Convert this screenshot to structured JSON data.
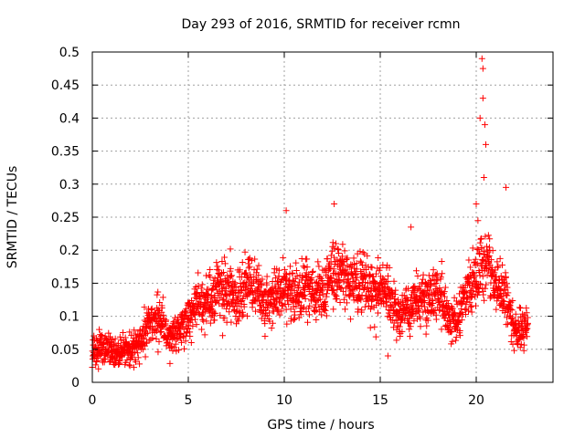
{
  "chart_data": {
    "type": "scatter",
    "title": "Day 293 of 2016, SRMTID for receiver rcmn",
    "xlabel": "GPS time / hours",
    "ylabel": "SRMTID / TECUs",
    "xlim": [
      0,
      24
    ],
    "ylim": [
      0,
      0.5
    ],
    "xticks": [
      0,
      5,
      10,
      15,
      20
    ],
    "yticks": [
      0,
      0.05,
      0.1,
      0.15,
      0.2,
      0.25,
      0.3,
      0.35,
      0.4,
      0.45,
      0.5
    ],
    "xtick_labels": [
      "0",
      "5",
      "10",
      "15",
      "20"
    ],
    "ytick_labels": [
      "0",
      "0.05",
      "0.1",
      "0.15",
      "0.2",
      "0.25",
      "0.3",
      "0.35",
      "0.4",
      "0.45",
      "0.5"
    ],
    "grid": true,
    "marker": "+",
    "color": "#ff0000",
    "series": [
      {
        "name": "rcmn",
        "profile_x": [
          0,
          0.5,
          1,
          1.5,
          2,
          2.5,
          3,
          3.5,
          4,
          4.5,
          5,
          5.5,
          6,
          6.5,
          7,
          7.5,
          8,
          8.5,
          9,
          9.5,
          10,
          10.5,
          11,
          11.5,
          12,
          12.5,
          13,
          13.5,
          14,
          14.5,
          15,
          15.5,
          16,
          16.5,
          17,
          17.5,
          18,
          18.5,
          19,
          19.5,
          20,
          20.5,
          21,
          21.5,
          22,
          22.5
        ],
        "profile_y": [
          0.045,
          0.05,
          0.05,
          0.045,
          0.05,
          0.06,
          0.09,
          0.1,
          0.065,
          0.075,
          0.1,
          0.12,
          0.12,
          0.14,
          0.14,
          0.13,
          0.15,
          0.14,
          0.12,
          0.13,
          0.14,
          0.13,
          0.14,
          0.14,
          0.13,
          0.16,
          0.17,
          0.15,
          0.15,
          0.14,
          0.14,
          0.13,
          0.1,
          0.11,
          0.13,
          0.13,
          0.14,
          0.1,
          0.1,
          0.14,
          0.16,
          0.19,
          0.15,
          0.13,
          0.08,
          0.08
        ],
        "highlight_points": [
          {
            "x": 10.1,
            "y": 0.26
          },
          {
            "x": 12.6,
            "y": 0.27
          },
          {
            "x": 20.0,
            "y": 0.27
          },
          {
            "x": 20.3,
            "y": 0.49
          },
          {
            "x": 20.35,
            "y": 0.475
          },
          {
            "x": 20.35,
            "y": 0.43
          },
          {
            "x": 20.2,
            "y": 0.4
          },
          {
            "x": 20.45,
            "y": 0.39
          },
          {
            "x": 20.5,
            "y": 0.36
          },
          {
            "x": 20.4,
            "y": 0.31
          },
          {
            "x": 21.55,
            "y": 0.295
          },
          {
            "x": 16.6,
            "y": 0.235
          },
          {
            "x": 15.4,
            "y": 0.04
          }
        ]
      }
    ]
  }
}
